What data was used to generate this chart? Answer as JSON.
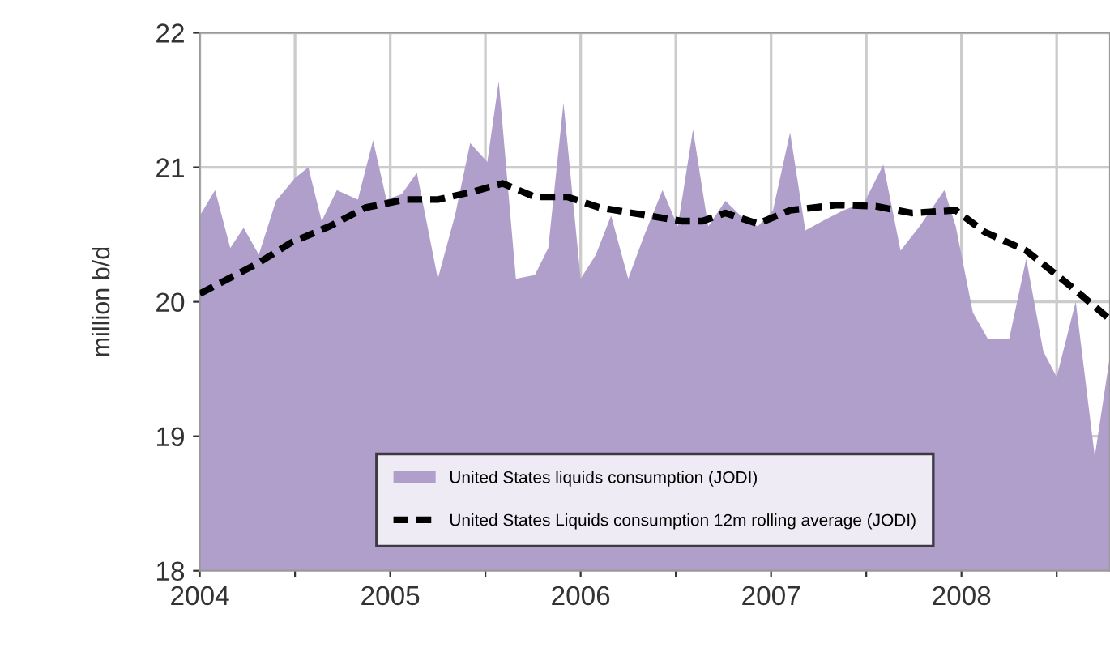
{
  "chart_data": {
    "type": "area",
    "ylabel": "million b/d",
    "xlim": [
      2004,
      2008.78
    ],
    "xticks": [
      2004,
      {
        "value": 2004.5,
        "label": null
      },
      2005,
      {
        "value": 2005.5,
        "label": null
      },
      2006,
      {
        "value": 2006.5,
        "label": null
      },
      2007,
      {
        "value": 2007.5,
        "label": null
      },
      2008,
      {
        "value": 2008.5,
        "label": null
      }
    ],
    "ylim": [
      18,
      22
    ],
    "yticks": [
      18,
      19,
      20,
      21,
      22
    ],
    "grid": true,
    "legend": "bottom",
    "series": [
      {
        "name": "United States liquids consumption (JODI)",
        "color": "#b09fcb",
        "x": [
          2004.0,
          2004.08,
          2004.16,
          2004.23,
          2004.31,
          2004.4,
          2004.5,
          2004.57,
          2004.64,
          2004.72,
          2004.83,
          2004.91,
          2004.98,
          2005.06,
          2005.14,
          2005.25,
          2005.34,
          2005.42,
          2005.51,
          2005.57,
          2005.66,
          2005.76,
          2005.83,
          2005.91,
          2006.0,
          2006.08,
          2006.16,
          2006.25,
          2006.33,
          2006.43,
          2006.51,
          2006.59,
          2006.67,
          2006.76,
          2006.84,
          2006.93,
          2007.01,
          2007.1,
          2007.18,
          2007.27,
          2007.38,
          2007.49,
          2007.59,
          2007.68,
          2007.78,
          2007.91,
          2007.97,
          2008.06,
          2008.14,
          2008.25,
          2008.34,
          2008.43,
          2008.5,
          2008.6,
          2008.7,
          2008.78
        ],
        "values": [
          20.64,
          20.83,
          20.4,
          20.55,
          20.35,
          20.75,
          20.92,
          21.0,
          20.6,
          20.83,
          20.76,
          21.2,
          20.76,
          20.8,
          20.96,
          20.17,
          20.64,
          21.18,
          21.04,
          21.64,
          20.17,
          20.2,
          20.4,
          21.48,
          20.17,
          20.35,
          20.64,
          20.17,
          20.48,
          20.83,
          20.56,
          21.28,
          20.56,
          20.75,
          20.64,
          20.56,
          20.68,
          21.26,
          20.53,
          20.6,
          20.68,
          20.74,
          21.02,
          20.38,
          20.56,
          20.83,
          20.56,
          19.92,
          19.72,
          19.72,
          20.32,
          19.63,
          19.44,
          20.0,
          18.85,
          19.6
        ]
      },
      {
        "name": "United States Liquids consumption 12m rolling average (JODI)",
        "type": "line",
        "color": "#000000",
        "line_style": "dashed",
        "x": [
          2004.0,
          2004.31,
          2004.48,
          2004.68,
          2004.87,
          2005.08,
          2005.25,
          2005.44,
          2005.59,
          2005.76,
          2005.93,
          2006.1,
          2006.27,
          2006.36,
          2006.53,
          2006.64,
          2006.76,
          2006.93,
          2007.1,
          2007.35,
          2007.55,
          2007.74,
          2007.97,
          2008.12,
          2008.34,
          2008.57,
          2008.77
        ],
        "values": [
          20.06,
          20.29,
          20.44,
          20.56,
          20.7,
          20.76,
          20.76,
          20.82,
          20.88,
          20.78,
          20.78,
          20.7,
          20.66,
          20.64,
          20.6,
          20.6,
          20.66,
          20.58,
          20.68,
          20.72,
          20.71,
          20.66,
          20.68,
          20.52,
          20.38,
          20.12,
          19.88
        ]
      }
    ]
  }
}
